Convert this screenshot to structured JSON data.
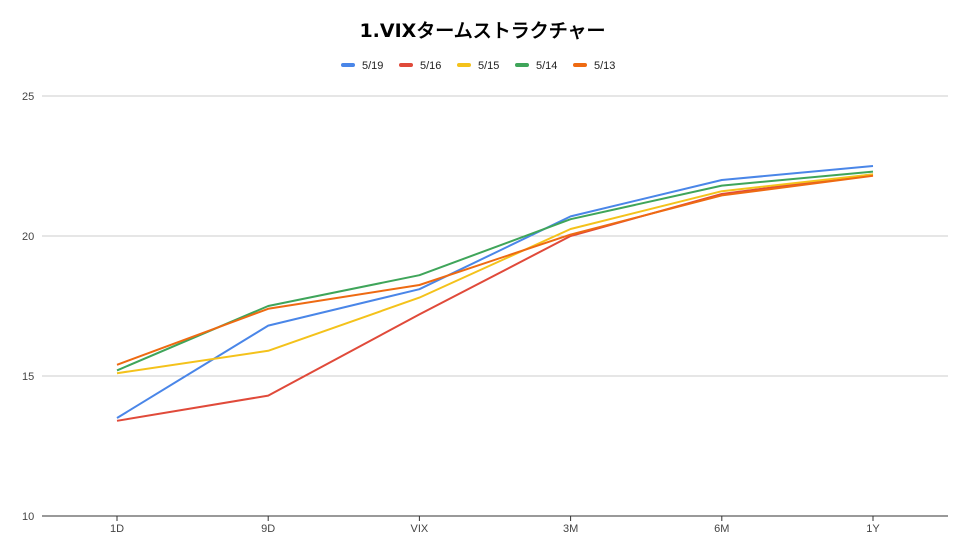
{
  "chart_data": {
    "type": "line",
    "title": "1.VIXタームストラクチャー",
    "xlabel": "",
    "ylabel": "",
    "categories": [
      "1D",
      "9D",
      "VIX",
      "3M",
      "6M",
      "1Y"
    ],
    "ylim": [
      10,
      25
    ],
    "yticks": [
      10,
      15,
      20,
      25
    ],
    "grid": true,
    "legend_position": "top",
    "series": [
      {
        "name": "5/19",
        "color": "#4a86e8",
        "values": [
          13.5,
          16.8,
          18.1,
          20.7,
          22.0,
          22.5
        ]
      },
      {
        "name": "5/16",
        "color": "#e04a3a",
        "values": [
          13.4,
          14.3,
          17.2,
          20.0,
          21.5,
          22.2
        ]
      },
      {
        "name": "5/15",
        "color": "#f4c21b",
        "values": [
          15.1,
          15.9,
          17.8,
          20.25,
          21.6,
          22.2
        ]
      },
      {
        "name": "5/14",
        "color": "#3fa55a",
        "values": [
          15.2,
          17.5,
          18.6,
          20.6,
          21.8,
          22.3
        ]
      },
      {
        "name": "5/13",
        "color": "#ee6a12",
        "values": [
          15.4,
          17.4,
          18.25,
          20.05,
          21.45,
          22.15
        ]
      }
    ]
  }
}
